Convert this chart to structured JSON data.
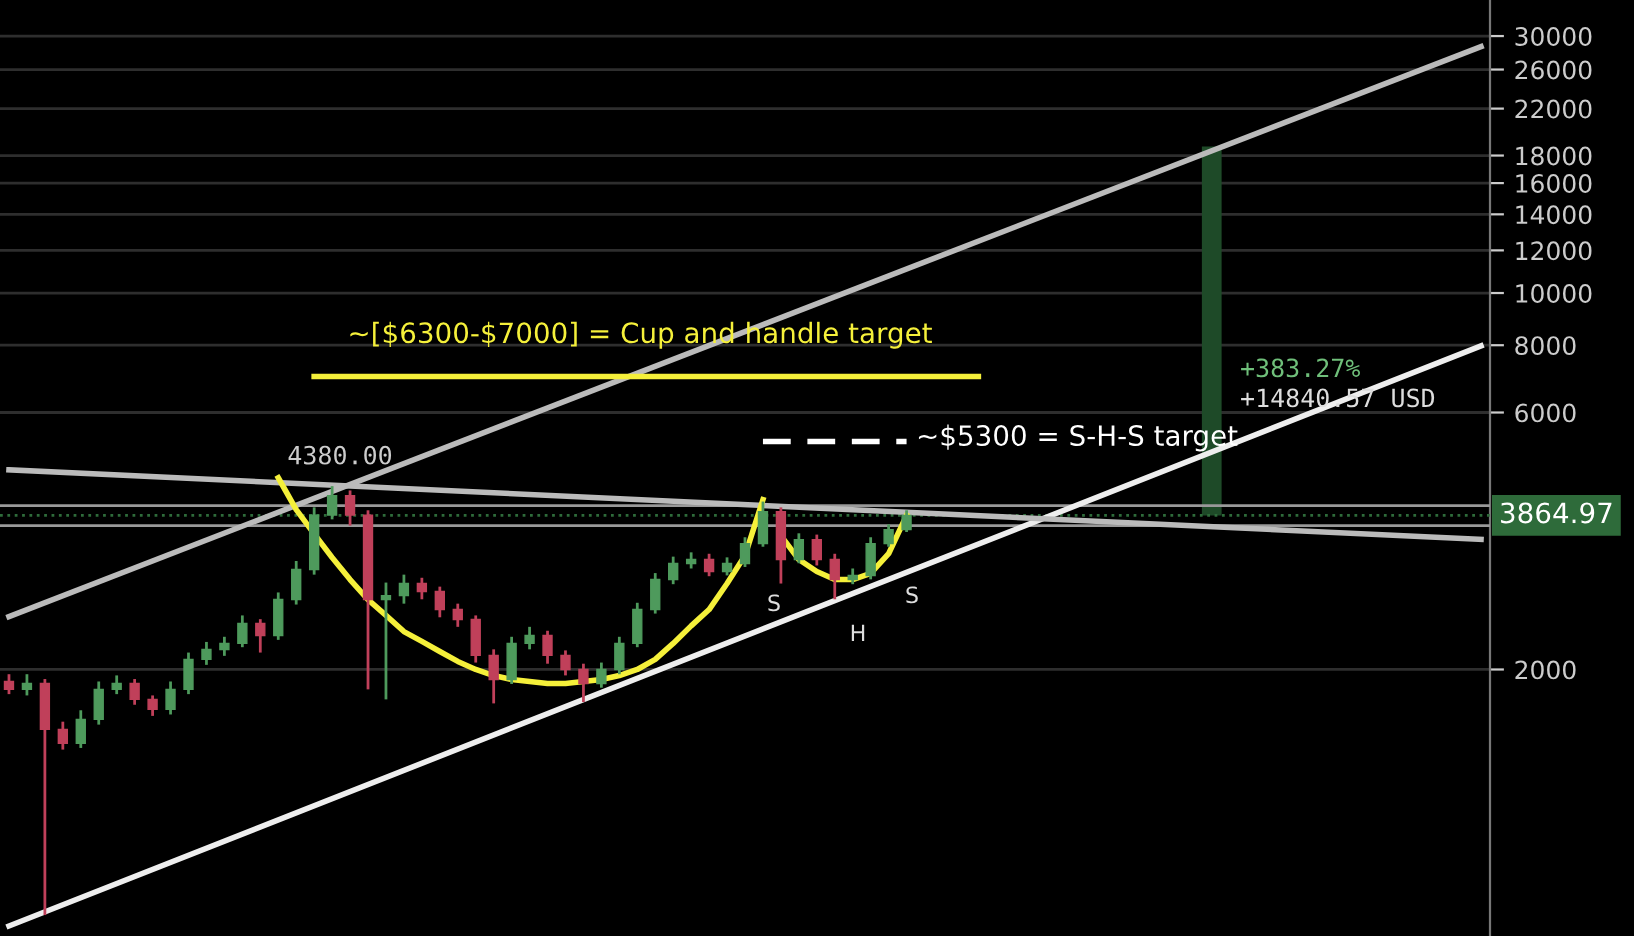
{
  "chart_data": {
    "type": "candlestick",
    "categories": [
      null,
      null,
      null,
      null,
      null,
      null,
      null,
      null,
      null,
      null,
      null,
      null,
      null,
      null,
      null,
      null,
      null,
      null,
      null,
      null,
      null,
      null,
      null,
      null,
      null,
      null,
      null,
      null,
      null,
      null,
      null,
      null,
      null,
      null,
      null,
      null,
      null,
      null,
      null,
      null,
      null,
      null,
      null,
      null,
      null,
      null,
      null,
      null,
      null,
      null,
      null,
      null,
      null,
      null,
      null,
      null,
      null,
      null,
      null,
      null,
      null,
      null,
      null,
      null,
      null,
      null,
      null,
      null,
      null,
      null,
      null,
      null,
      null,
      null,
      null,
      null,
      null,
      null,
      null,
      null,
      null,
      null,
      null
    ],
    "ohlc": [
      [
        1900,
        1960,
        1800,
        1837
      ],
      [
        1837,
        1960,
        1790,
        1884
      ],
      [
        1884,
        1920,
        700,
        1548
      ],
      [
        1548,
        1600,
        1420,
        1459
      ],
      [
        1459,
        1680,
        1430,
        1616
      ],
      [
        1616,
        1900,
        1580,
        1837
      ],
      [
        1837,
        1950,
        1800,
        1884
      ],
      [
        1884,
        1920,
        1720,
        1760
      ],
      [
        1760,
        1790,
        1640,
        1686
      ],
      [
        1686,
        1900,
        1650,
        1837
      ],
      [
        1837,
        2150,
        1800,
        2088
      ],
      [
        2088,
        2250,
        2040,
        2179
      ],
      [
        2179,
        2300,
        2120,
        2236
      ],
      [
        2236,
        2520,
        2200,
        2434
      ],
      [
        2434,
        2480,
        2150,
        2313
      ],
      [
        2313,
        2780,
        2270,
        2697
      ],
      [
        2697,
        3180,
        2640,
        3066
      ],
      [
        3066,
        4000,
        3000,
        3870
      ],
      [
        3870,
        4380,
        3800,
        4205
      ],
      [
        4205,
        4300,
        3700,
        3870
      ],
      [
        3870,
        3950,
        1837,
        2697
      ],
      [
        2697,
        2900,
        1760,
        2743
      ],
      [
        2743,
        3000,
        2650,
        2888
      ],
      [
        2888,
        2960,
        2700,
        2791
      ],
      [
        2791,
        2850,
        2500,
        2584
      ],
      [
        2584,
        2650,
        2400,
        2476
      ],
      [
        2476,
        2520,
        2060,
        2124
      ],
      [
        2124,
        2180,
        1730,
        1916
      ],
      [
        1916,
        2300,
        1880,
        2236
      ],
      [
        2236,
        2400,
        2180,
        2313
      ],
      [
        2313,
        2360,
        2050,
        2124
      ],
      [
        2124,
        2170,
        1950,
        2000
      ],
      [
        2000,
        2050,
        1740,
        1884
      ],
      [
        1884,
        2060,
        1850,
        2000
      ],
      [
        2000,
        2300,
        1960,
        2236
      ],
      [
        2236,
        2660,
        2200,
        2584
      ],
      [
        2584,
        3020,
        2540,
        2938
      ],
      [
        2938,
        3240,
        2880,
        3146
      ],
      [
        3146,
        3300,
        3080,
        3200
      ],
      [
        3200,
        3280,
        2980,
        3040
      ],
      [
        3040,
        3230,
        2990,
        3146
      ],
      [
        3146,
        3520,
        3100,
        3425
      ],
      [
        3425,
        4100,
        3380,
        3927
      ],
      [
        3927,
        4000,
        2888,
        3200
      ],
      [
        3200,
        3580,
        3150,
        3484
      ],
      [
        3484,
        3560,
        3120,
        3200
      ],
      [
        3200,
        3280,
        2700,
        2938
      ],
      [
        2938,
        3080,
        2880,
        2989
      ],
      [
        2989,
        3520,
        2940,
        3425
      ],
      [
        3425,
        3720,
        3380,
        3636
      ],
      [
        3636,
        3950,
        3600,
        3864.97
      ],
      null,
      null,
      null,
      null,
      null,
      null,
      null,
      null,
      null,
      null,
      null,
      null,
      null,
      null,
      null,
      null,
      null,
      null,
      null,
      null,
      null,
      null,
      null,
      null,
      null,
      null,
      null,
      null,
      null,
      null,
      null,
      null
    ],
    "colors": [
      "#c0405a",
      "#4e9a5c",
      "#c0405a",
      "#c0405a",
      "#4e9a5c",
      "#4e9a5c",
      "#4e9a5c",
      "#c0405a",
      "#c0405a",
      "#4e9a5c",
      "#4e9a5c",
      "#4e9a5c",
      "#4e9a5c",
      "#4e9a5c",
      "#c0405a",
      "#4e9a5c",
      "#4e9a5c",
      "#4e9a5c",
      "#4e9a5c",
      "#c0405a",
      "#c0405a",
      "#4e9a5c",
      "#4e9a5c",
      "#c0405a",
      "#c0405a",
      "#c0405a",
      "#c0405a",
      "#c0405a",
      "#4e9a5c",
      "#4e9a5c",
      "#c0405a",
      "#c0405a",
      "#c0405a",
      "#4e9a5c",
      "#4e9a5c",
      "#4e9a5c",
      "#4e9a5c",
      "#4e9a5c",
      "#4e9a5c",
      "#c0405a",
      "#4e9a5c",
      "#4e9a5c",
      "#4e9a5c",
      "#c0405a",
      "#4e9a5c",
      "#c0405a",
      "#c0405a",
      "#4e9a5c",
      "#4e9a5c",
      "#4e9a5c",
      "#4e9a5c",
      null,
      null,
      null,
      null,
      null,
      null,
      null,
      null,
      null,
      null,
      null,
      null,
      null,
      null,
      null,
      null,
      null,
      null,
      null,
      null,
      null,
      null,
      null,
      null,
      null,
      null,
      null,
      null,
      null,
      null,
      null,
      null
    ],
    "series": [
      {
        "type": "bar",
        "color": "#1e4a28",
        "base": [
          null,
          null,
          null,
          null,
          null,
          null,
          null,
          null,
          null,
          null,
          null,
          null,
          null,
          null,
          null,
          null,
          null,
          null,
          null,
          null,
          null,
          null,
          null,
          null,
          null,
          null,
          null,
          null,
          null,
          null,
          null,
          null,
          null,
          null,
          null,
          null,
          null,
          null,
          null,
          null,
          null,
          null,
          null,
          null,
          null,
          null,
          null,
          null,
          null,
          null,
          null,
          null,
          null,
          null,
          null,
          null,
          null,
          null,
          null,
          null,
          null,
          null,
          null,
          null,
          null,
          null,
          null,
          3864.97,
          null,
          null,
          null,
          null,
          null,
          null,
          null,
          null,
          null,
          null,
          null,
          null,
          null,
          null,
          null
        ],
        "values": [
          null,
          null,
          null,
          null,
          null,
          null,
          null,
          null,
          null,
          null,
          null,
          null,
          null,
          null,
          null,
          null,
          null,
          null,
          null,
          null,
          null,
          null,
          null,
          null,
          null,
          null,
          null,
          null,
          null,
          null,
          null,
          null,
          null,
          null,
          null,
          null,
          null,
          null,
          null,
          null,
          null,
          null,
          null,
          null,
          null,
          null,
          null,
          null,
          null,
          null,
          null,
          null,
          null,
          null,
          null,
          null,
          null,
          null,
          null,
          null,
          null,
          null,
          null,
          null,
          null,
          null,
          null,
          14840.57,
          null,
          null,
          null,
          null,
          null,
          null,
          null,
          null,
          null,
          null,
          null,
          null,
          null,
          null,
          null
        ]
      },
      {
        "type": "line",
        "color": "#bbbbbb",
        "values": [
          2508,
          null,
          null,
          null,
          null,
          null,
          null,
          null,
          null,
          null,
          null,
          null,
          null,
          null,
          null,
          null,
          null,
          null,
          null,
          null,
          null,
          null,
          null,
          null,
          null,
          null,
          null,
          null,
          null,
          null,
          null,
          null,
          null,
          null,
          null,
          null,
          null,
          null,
          null,
          null,
          null,
          null,
          null,
          null,
          null,
          null,
          null,
          null,
          null,
          null,
          null,
          null,
          null,
          null,
          null,
          null,
          null,
          null,
          null,
          null,
          null,
          null,
          null,
          null,
          null,
          null,
          null,
          null,
          null,
          null,
          null,
          null,
          null,
          null,
          null,
          null,
          null,
          null,
          null,
          null,
          null,
          null,
          28680
        ]
      },
      {
        "type": "line",
        "color": "#eeeeee",
        "values": [
          668,
          null,
          null,
          null,
          null,
          null,
          null,
          null,
          null,
          null,
          null,
          null,
          null,
          null,
          null,
          null,
          null,
          null,
          null,
          null,
          null,
          null,
          null,
          null,
          null,
          null,
          null,
          null,
          null,
          null,
          null,
          null,
          null,
          null,
          null,
          null,
          null,
          null,
          null,
          null,
          null,
          null,
          null,
          null,
          null,
          null,
          null,
          null,
          null,
          null,
          null,
          null,
          null,
          null,
          null,
          null,
          null,
          null,
          null,
          null,
          null,
          null,
          null,
          null,
          null,
          null,
          null,
          null,
          null,
          null,
          null,
          null,
          null,
          null,
          null,
          null,
          null,
          null,
          null,
          null,
          null,
          null,
          7975
        ]
      },
      {
        "type": "line",
        "color": "#bbbbbb",
        "values": [
          4695,
          null,
          null,
          null,
          null,
          null,
          null,
          null,
          null,
          null,
          null,
          null,
          null,
          null,
          null,
          null,
          null,
          null,
          null,
          null,
          null,
          null,
          null,
          null,
          null,
          null,
          null,
          null,
          null,
          null,
          null,
          null,
          null,
          null,
          null,
          null,
          null,
          null,
          null,
          null,
          null,
          null,
          null,
          null,
          null,
          null,
          null,
          null,
          null,
          null,
          null,
          null,
          null,
          null,
          null,
          null,
          null,
          null,
          null,
          null,
          null,
          null,
          null,
          null,
          null,
          null,
          null,
          null,
          null,
          null,
          null,
          null,
          null,
          null,
          null,
          null,
          null,
          null,
          null,
          null,
          null,
          null,
          3487
        ]
      },
      {
        "type": "line",
        "color": "#f5f03a",
        "values": [
          null,
          null,
          null,
          null,
          null,
          null,
          null,
          null,
          null,
          null,
          null,
          null,
          null,
          null,
          null,
          4540,
          3961,
          3570,
          3228,
          2938,
          2697,
          2521,
          2352,
          2255,
          2160,
          2070,
          2000,
          1949,
          1916,
          1900,
          1884,
          1884,
          1900,
          1916,
          1949,
          2000,
          2088,
          2236,
          2410,
          2584,
          2888,
          3255,
          4134,
          null,
          null,
          null,
          null,
          null,
          null,
          null,
          null,
          null,
          null,
          null,
          null,
          null,
          null,
          null,
          null,
          null,
          null,
          null,
          null,
          null,
          null,
          null,
          null,
          null,
          null,
          null,
          null,
          null,
          null,
          null,
          null,
          null,
          null,
          null,
          null,
          null,
          null,
          null,
          null
        ]
      },
      {
        "type": "line",
        "color": "#f5f03a",
        "values": [
          null,
          null,
          null,
          null,
          null,
          null,
          null,
          null,
          null,
          null,
          null,
          null,
          null,
          null,
          null,
          null,
          null,
          null,
          null,
          null,
          null,
          null,
          null,
          null,
          null,
          null,
          null,
          null,
          null,
          null,
          null,
          null,
          null,
          null,
          null,
          null,
          null,
          null,
          null,
          null,
          null,
          null,
          null,
          3544,
          3200,
          3040,
          2938,
          2938,
          3015,
          3281,
          3865,
          null,
          null,
          null,
          null,
          null,
          null,
          null,
          null,
          null,
          null,
          null,
          null,
          null,
          null,
          null,
          null,
          null,
          null,
          null,
          null,
          null,
          null,
          null,
          null,
          null,
          null,
          null,
          null,
          null,
          null,
          null,
          null
        ]
      },
      {
        "type": "line",
        "color": "#f5f03a",
        "values": [
          null,
          null,
          null,
          null,
          null,
          null,
          null,
          null,
          null,
          null,
          null,
          null,
          null,
          null,
          null,
          null,
          null,
          7000,
          7000,
          7000,
          7000,
          7000,
          7000,
          7000,
          7000,
          7000,
          7000,
          7000,
          7000,
          7000,
          7000,
          7000,
          7000,
          7000,
          7000,
          7000,
          7000,
          7000,
          7000,
          7000,
          7000,
          7000,
          7000,
          7000,
          7000,
          7000,
          7000,
          7000,
          7000,
          7000,
          7000,
          7000,
          7000,
          7000,
          7000,
          null,
          null,
          null,
          null,
          null,
          null,
          null,
          null,
          null,
          null,
          null,
          null,
          null,
          null,
          null,
          null,
          null,
          null,
          null,
          null,
          null,
          null,
          null,
          null,
          null,
          null,
          null,
          null
        ]
      },
      {
        "type": "line",
        "color": "#ffffff",
        "line_style": "dashed",
        "values": [
          null,
          null,
          null,
          null,
          null,
          null,
          null,
          null,
          null,
          null,
          null,
          null,
          null,
          null,
          null,
          null,
          null,
          null,
          null,
          null,
          null,
          null,
          null,
          null,
          null,
          null,
          null,
          null,
          null,
          null,
          null,
          null,
          null,
          null,
          null,
          null,
          null,
          null,
          null,
          null,
          null,
          null,
          5300,
          5300,
          5300,
          5300,
          5300,
          5300,
          5300,
          5300,
          5300,
          null,
          null,
          null,
          null,
          null,
          null,
          null,
          null,
          null,
          null,
          null,
          null,
          null,
          null,
          null,
          null,
          null,
          null,
          null,
          null,
          null,
          null,
          null,
          null,
          null,
          null,
          null,
          null,
          null,
          null,
          null,
          null
        ]
      }
    ],
    "ref_lines": [
      {
        "axis": "y",
        "value": 4030,
        "color": "#999999"
      },
      {
        "axis": "y",
        "value": 3700,
        "color": "#999999"
      },
      {
        "axis": "y",
        "value": 3864.97,
        "label": "3864.97",
        "color": "#2e6b3a",
        "line_style": "dotted"
      }
    ],
    "annotations": [
      {
        "text": "~[$6300-$7000] = Cup and handle target",
        "y": 7000
      },
      "~$5300 = S-H-S target",
      {
        "text": "4380.00",
        "y": 4380
      },
      "S",
      "H",
      "S",
      "+383.27%",
      "+14840.57 USD"
    ],
    "log": true,
    "ylim": [
      640,
      35000
    ],
    "yticks": [
      2000,
      6000,
      8000,
      10000,
      12000,
      14000,
      16000,
      18000,
      22000,
      26000,
      30000
    ],
    "tick_labels": "y",
    "grid": "y",
    "legend": false
  }
}
